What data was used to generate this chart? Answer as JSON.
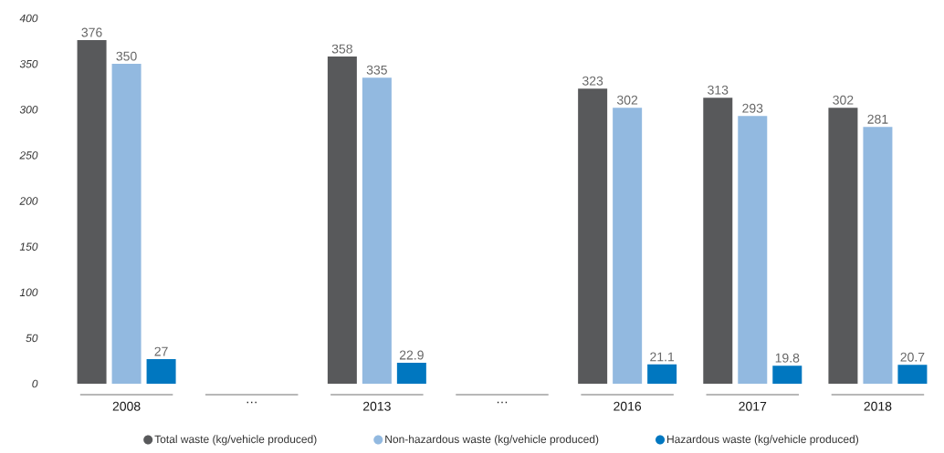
{
  "chart_data": {
    "type": "bar",
    "categories": [
      "2008",
      "…",
      "2013",
      "…",
      "2016",
      "2017",
      "2018"
    ],
    "series": [
      {
        "name": "Total waste (kg/vehicle produced)",
        "color": "#58595b",
        "values": [
          376,
          null,
          358,
          null,
          323,
          313,
          302
        ]
      },
      {
        "name": "Non-hazardous waste (kg/vehicle produced)",
        "color": "#92b9e0",
        "values": [
          350,
          null,
          335,
          null,
          302,
          293,
          281
        ]
      },
      {
        "name": "Hazardous waste (kg/vehicle produced)",
        "color": "#0077c0",
        "values": [
          27,
          null,
          22.9,
          null,
          21.1,
          19.8,
          20.7
        ]
      }
    ],
    "ylim": [
      0,
      400
    ],
    "yticks": [
      0,
      50,
      100,
      150,
      200,
      250,
      300,
      350,
      400
    ],
    "data_labels": true,
    "legend": "bottom",
    "marker": "circle",
    "grid": false
  }
}
